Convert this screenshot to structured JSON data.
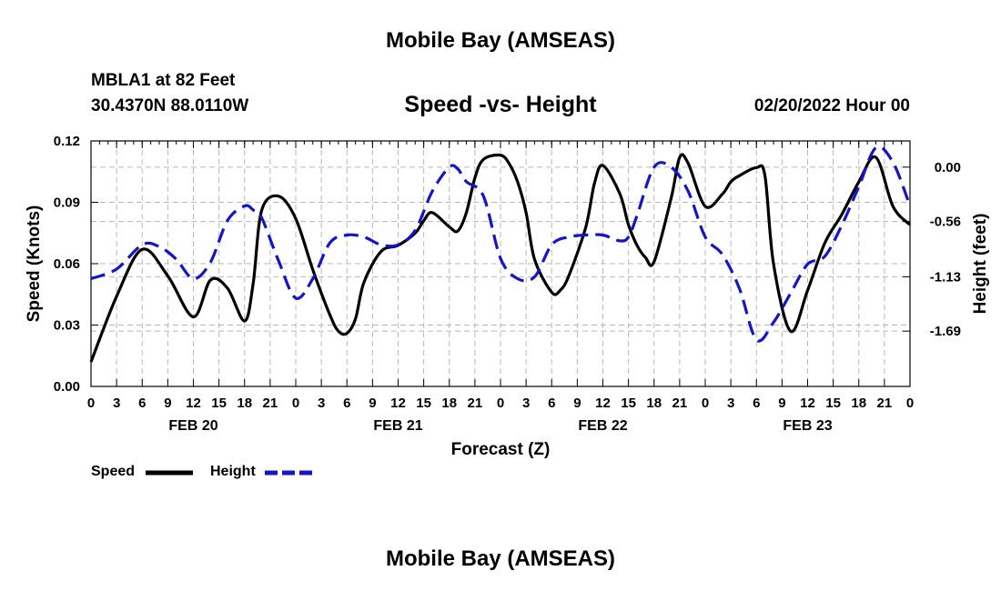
{
  "header": {
    "title": "Mobile Bay (AMSEAS)",
    "station": "MBLA1 at 82 Feet",
    "coords": "30.4370N  88.0110W",
    "date": "02/20/2022 Hour 00"
  },
  "footer": {
    "title": "Mobile Bay (AMSEAS)"
  },
  "legend": {
    "speed_label": "Speed",
    "height_label": "Height"
  },
  "colors": {
    "speed": "#000000",
    "height": "#1515c8",
    "grid": "#b8b8b8"
  },
  "chart_data": {
    "type": "line",
    "title": "Speed -vs- Height",
    "xlabel": "Forecast (Z)",
    "ylabel": "Speed (Knots)",
    "y2label": "Height (feet)",
    "x_unit": "hours from 02/20/2022 00Z",
    "xlim": [
      0,
      96
    ],
    "ylim": [
      0,
      0.12
    ],
    "y2lim": [
      -2.26,
      0.27
    ],
    "yticks": [
      0.0,
      0.03,
      0.06,
      0.09,
      0.12
    ],
    "ytick_labels": [
      "0.00",
      "0.03",
      "0.06",
      "0.09",
      "0.12"
    ],
    "y2ticks": [
      -1.69,
      -1.13,
      -0.56,
      0.0
    ],
    "y2tick_labels": [
      "-1.69",
      "-1.13",
      "-0.56",
      "0.00"
    ],
    "xticks": [
      0,
      3,
      6,
      9,
      12,
      15,
      18,
      21,
      24,
      27,
      30,
      33,
      36,
      39,
      42,
      45,
      48,
      51,
      54,
      57,
      60,
      63,
      66,
      69,
      72,
      75,
      78,
      81,
      84,
      87,
      90,
      93,
      96
    ],
    "xtick_labels": [
      "0",
      "3",
      "6",
      "9",
      "12",
      "15",
      "18",
      "21",
      "0",
      "3",
      "6",
      "9",
      "12",
      "15",
      "18",
      "21",
      "0",
      "3",
      "6",
      "9",
      "12",
      "15",
      "18",
      "21",
      "0",
      "3",
      "6",
      "9",
      "12",
      "15",
      "18",
      "21",
      "0"
    ],
    "day_labels": [
      {
        "x": 12,
        "label": "FEB 20"
      },
      {
        "x": 36,
        "label": "FEB 21"
      },
      {
        "x": 60,
        "label": "FEB 22"
      },
      {
        "x": 84,
        "label": "FEB 23"
      }
    ],
    "grid": true,
    "legend_position": "bottom-left",
    "series": [
      {
        "name": "Speed",
        "axis": "left",
        "style": "solid",
        "x": [
          0,
          3,
          6,
          9,
          12,
          14,
          16,
          18,
          19,
          20,
          22,
          24,
          26,
          28,
          29,
          30,
          31,
          32,
          34,
          36,
          38,
          39,
          40,
          42,
          43,
          44,
          45,
          46,
          48,
          49,
          50,
          51,
          52,
          54,
          55,
          56,
          58,
          59,
          60,
          62,
          63,
          64,
          65,
          66,
          68,
          69,
          70,
          72,
          74,
          75,
          76,
          78,
          79,
          80,
          82,
          84,
          86,
          88,
          90,
          92,
          94,
          96
        ],
        "values": [
          0.012,
          0.044,
          0.067,
          0.054,
          0.034,
          0.052,
          0.048,
          0.032,
          0.05,
          0.086,
          0.093,
          0.082,
          0.057,
          0.035,
          0.027,
          0.026,
          0.033,
          0.051,
          0.066,
          0.069,
          0.075,
          0.081,
          0.085,
          0.078,
          0.076,
          0.085,
          0.102,
          0.111,
          0.113,
          0.109,
          0.1,
          0.085,
          0.062,
          0.046,
          0.047,
          0.054,
          0.078,
          0.099,
          0.108,
          0.094,
          0.079,
          0.069,
          0.063,
          0.061,
          0.092,
          0.112,
          0.109,
          0.088,
          0.094,
          0.1,
          0.103,
          0.107,
          0.103,
          0.06,
          0.027,
          0.047,
          0.07,
          0.084,
          0.1,
          0.112,
          0.088,
          0.079
        ]
      },
      {
        "name": "Height",
        "axis": "right",
        "style": "dashed",
        "x": [
          0,
          3,
          6,
          8,
          10,
          12,
          14,
          16,
          18,
          19,
          20,
          22,
          24,
          26,
          28,
          30,
          32,
          34,
          36,
          38,
          40,
          42,
          43,
          44,
          46,
          48,
          50,
          52,
          54,
          56,
          58,
          60,
          62,
          63,
          64,
          66,
          68,
          70,
          72,
          74,
          76,
          78,
          80,
          82,
          84,
          86,
          88,
          90,
          92,
          94,
          96
        ],
        "values": [
          -1.15,
          -1.05,
          -0.8,
          -0.82,
          -0.95,
          -1.15,
          -0.98,
          -0.55,
          -0.4,
          -0.44,
          -0.52,
          -0.97,
          -1.35,
          -1.15,
          -0.78,
          -0.7,
          -0.72,
          -0.8,
          -0.8,
          -0.65,
          -0.25,
          0.0,
          -0.02,
          -0.15,
          -0.3,
          -0.94,
          -1.15,
          -1.13,
          -0.8,
          -0.72,
          -0.7,
          -0.7,
          -0.76,
          -0.72,
          -0.5,
          0.0,
          0.0,
          -0.25,
          -0.72,
          -0.9,
          -1.25,
          -1.78,
          -1.6,
          -1.3,
          -1.0,
          -0.92,
          -0.6,
          -0.2,
          0.2,
          0.05,
          -0.4
        ]
      }
    ]
  }
}
